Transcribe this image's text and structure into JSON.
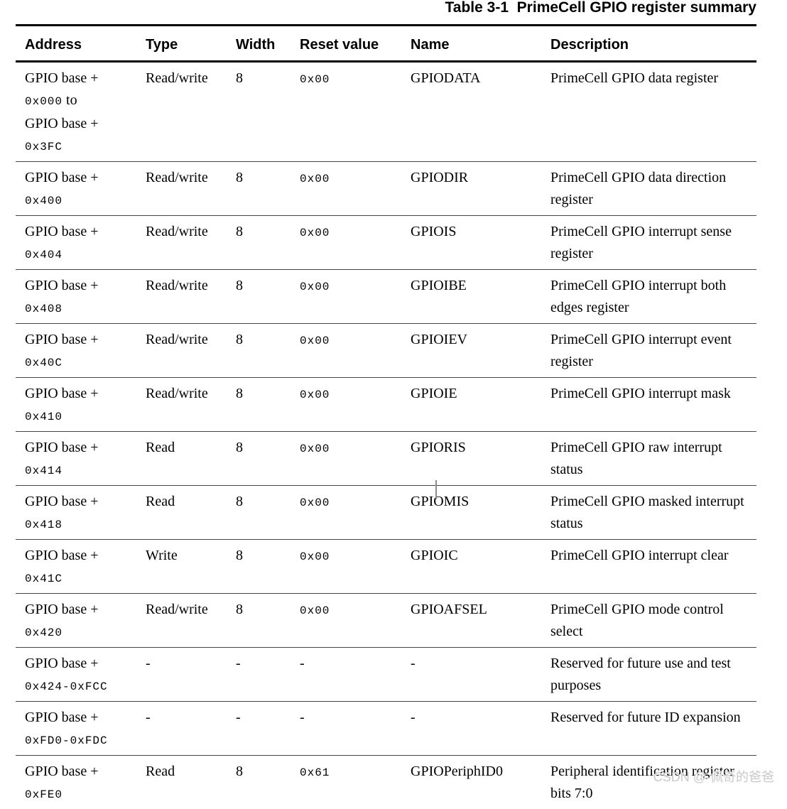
{
  "title": "Table 3-1  PrimeCell GPIO register summary",
  "columns": [
    "Address",
    "Type",
    "Width",
    "Reset value",
    "Name",
    "Description"
  ],
  "rows": [
    {
      "address": [
        [
          {
            "t": "GPIO base +",
            "m": false
          }
        ],
        [
          {
            "t": "0x000",
            "m": true
          },
          {
            "t": " to",
            "m": false
          }
        ],
        [
          {
            "t": "GPIO base +",
            "m": false
          }
        ],
        [
          {
            "t": "0x3FC",
            "m": true
          }
        ]
      ],
      "type": "Read/write",
      "width": "8",
      "reset": "0x00",
      "name": "GPIODATA",
      "description": "PrimeCell GPIO data register"
    },
    {
      "address": [
        [
          {
            "t": "GPIO base +",
            "m": false
          }
        ],
        [
          {
            "t": "0x400",
            "m": true
          }
        ]
      ],
      "type": "Read/write",
      "width": "8",
      "reset": "0x00",
      "name": "GPIODIR",
      "description": "PrimeCell GPIO data direction register"
    },
    {
      "address": [
        [
          {
            "t": "GPIO base +",
            "m": false
          }
        ],
        [
          {
            "t": "0x404",
            "m": true
          }
        ]
      ],
      "type": "Read/write",
      "width": "8",
      "reset": "0x00",
      "name": "GPIOIS",
      "description": "PrimeCell GPIO interrupt sense register"
    },
    {
      "address": [
        [
          {
            "t": "GPIO base +",
            "m": false
          }
        ],
        [
          {
            "t": "0x408",
            "m": true
          }
        ]
      ],
      "type": "Read/write",
      "width": "8",
      "reset": "0x00",
      "name": "GPIOIBE",
      "description": "PrimeCell GPIO interrupt both edges register"
    },
    {
      "address": [
        [
          {
            "t": "GPIO base +",
            "m": false
          }
        ],
        [
          {
            "t": "0x40C",
            "m": true
          }
        ]
      ],
      "type": "Read/write",
      "width": "8",
      "reset": "0x00",
      "name": "GPIOIEV",
      "description": "PrimeCell GPIO interrupt event register"
    },
    {
      "address": [
        [
          {
            "t": "GPIO base +",
            "m": false
          }
        ],
        [
          {
            "t": "0x410",
            "m": true
          }
        ]
      ],
      "type": "Read/write",
      "width": "8",
      "reset": "0x00",
      "name": "GPIOIE",
      "description": "PrimeCell GPIO interrupt mask"
    },
    {
      "address": [
        [
          {
            "t": "GPIO base +",
            "m": false
          }
        ],
        [
          {
            "t": "0x414",
            "m": true
          }
        ]
      ],
      "type": "Read",
      "width": "8",
      "reset": "0x00",
      "name": "GPIORIS",
      "description": "PrimeCell GPIO raw interrupt status"
    },
    {
      "address": [
        [
          {
            "t": "GPIO base +",
            "m": false
          }
        ],
        [
          {
            "t": "0x418",
            "m": true
          }
        ]
      ],
      "type": "Read",
      "width": "8",
      "reset": "0x00",
      "name": "GPIOMIS",
      "description": "PrimeCell GPIO masked interrupt status"
    },
    {
      "address": [
        [
          {
            "t": "GPIO base +",
            "m": false
          }
        ],
        [
          {
            "t": "0x41C",
            "m": true
          }
        ]
      ],
      "type": "Write",
      "width": "8",
      "reset": "0x00",
      "name": "GPIOIC",
      "description": "PrimeCell GPIO interrupt clear"
    },
    {
      "address": [
        [
          {
            "t": "GPIO base +",
            "m": false
          }
        ],
        [
          {
            "t": "0x420",
            "m": true
          }
        ]
      ],
      "type": "Read/write",
      "width": "8",
      "reset": "0x00",
      "name": "GPIOAFSEL",
      "description": "PrimeCell GPIO mode control select"
    },
    {
      "address": [
        [
          {
            "t": "GPIO base +",
            "m": false
          }
        ],
        [
          {
            "t": "0x424-0xFCC",
            "m": true
          }
        ]
      ],
      "type": "-",
      "width": "-",
      "reset": "-",
      "name": "-",
      "description": "Reserved for future use and test purposes"
    },
    {
      "address": [
        [
          {
            "t": "GPIO base +",
            "m": false
          }
        ],
        [
          {
            "t": "0xFD0-0xFDC",
            "m": true
          }
        ]
      ],
      "type": "-",
      "width": "-",
      "reset": "-",
      "name": "-",
      "description": "Reserved for future ID expansion"
    },
    {
      "address": [
        [
          {
            "t": "GPIO base +",
            "m": false
          }
        ],
        [
          {
            "t": "0xFE0",
            "m": true
          }
        ]
      ],
      "type": "Read",
      "width": "8",
      "reset": "0x61",
      "name": "GPIOPeriphID0",
      "description": "Peripheral identification register bits 7:0"
    }
  ],
  "watermark": "CSDN @-佩奇的爸爸"
}
